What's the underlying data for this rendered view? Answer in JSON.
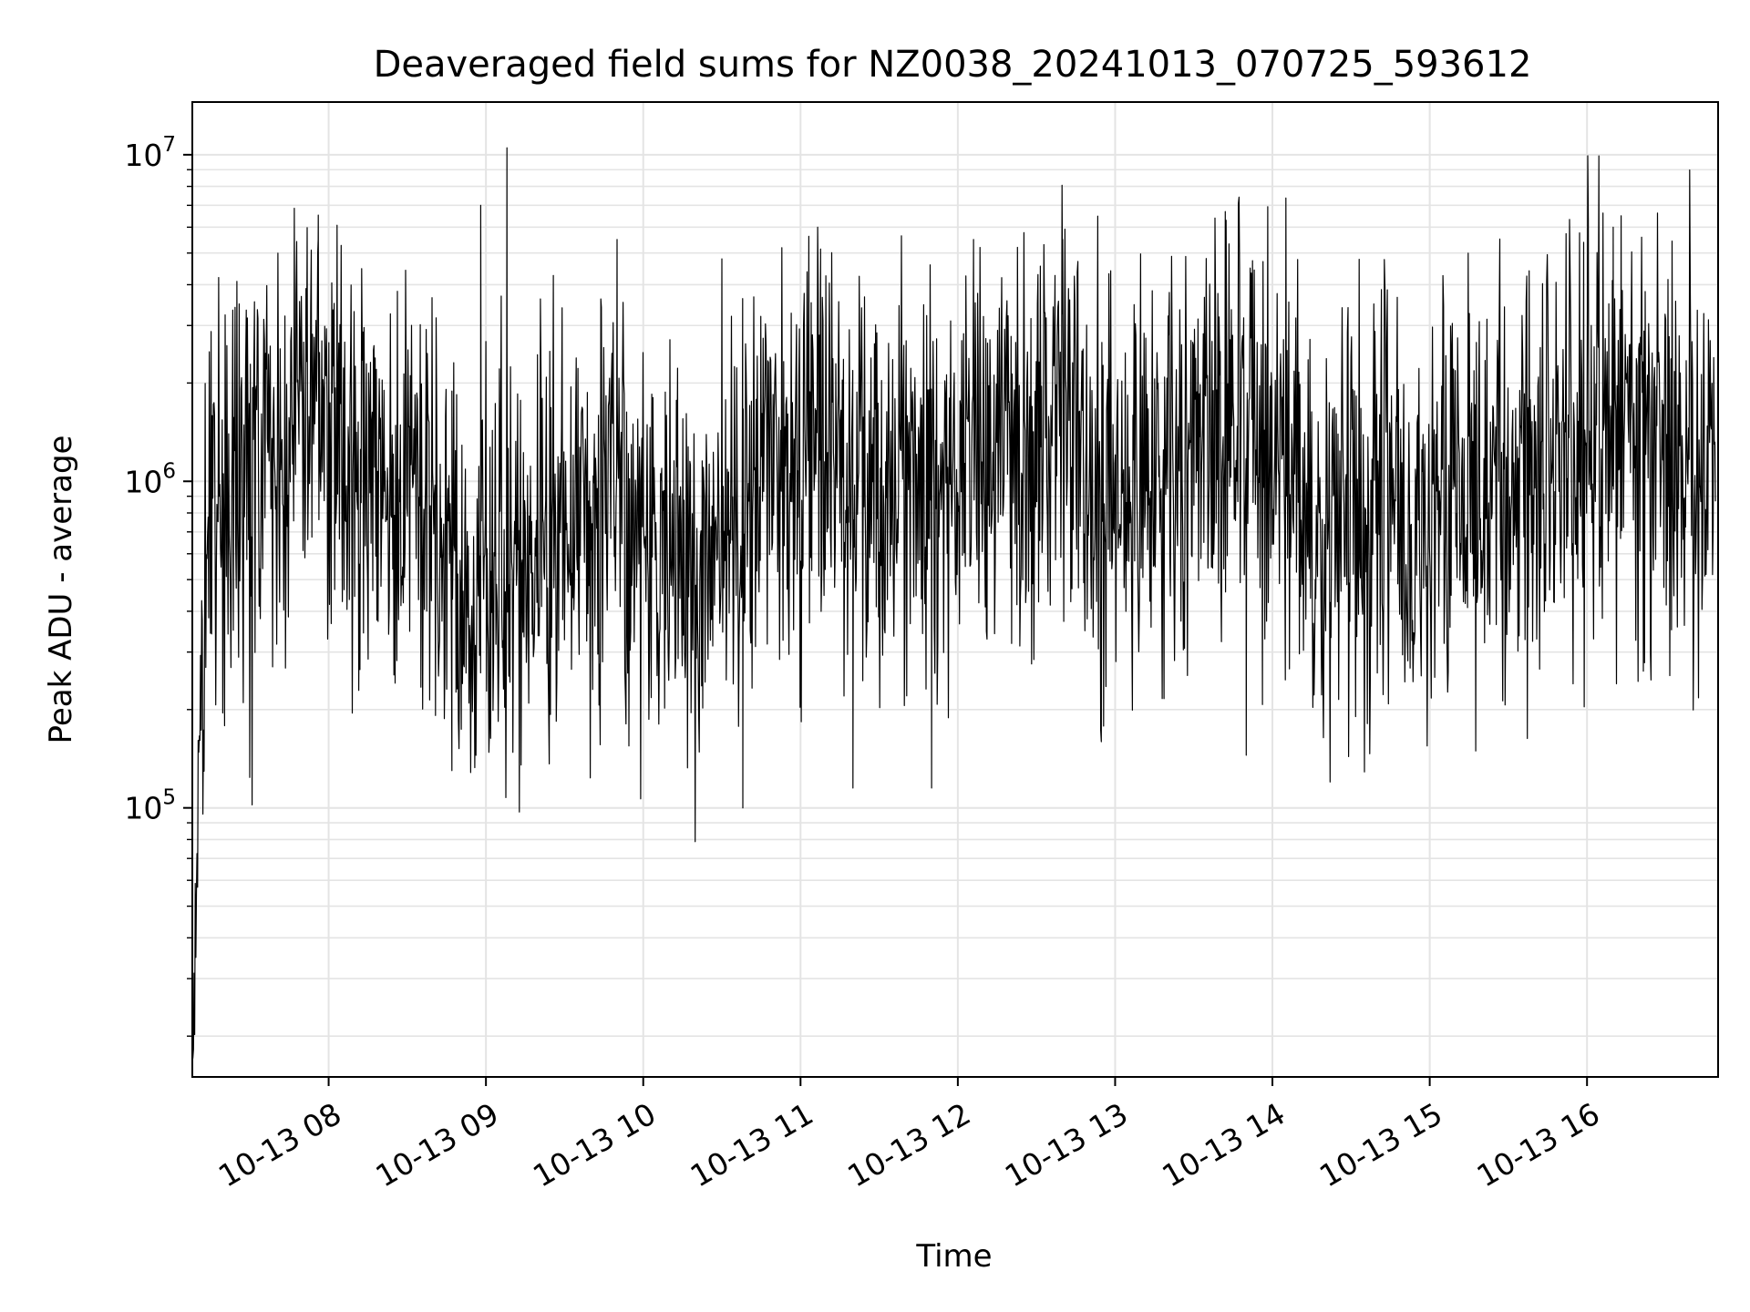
{
  "chart_data": {
    "type": "line",
    "title": "Deaveraged field sums for NZ0038_20241013_070725_593612",
    "xlabel": "Time",
    "ylabel": "Peak ADU - average",
    "yscale": "log",
    "xlim": [
      "2024-10-13 07:08",
      "2024-10-13 16:50"
    ],
    "ylim": [
      15000,
      14500000
    ],
    "grid": true,
    "x_ticks": [
      {
        "label": "10-13 08",
        "value": "2024-10-13 08:00"
      },
      {
        "label": "10-13 09",
        "value": "2024-10-13 09:00"
      },
      {
        "label": "10-13 10",
        "value": "2024-10-13 10:00"
      },
      {
        "label": "10-13 11",
        "value": "2024-10-13 11:00"
      },
      {
        "label": "10-13 12",
        "value": "2024-10-13 12:00"
      },
      {
        "label": "10-13 13",
        "value": "2024-10-13 13:00"
      },
      {
        "label": "10-13 14",
        "value": "2024-10-13 14:00"
      },
      {
        "label": "10-13 15",
        "value": "2024-10-13 15:00"
      },
      {
        "label": "10-13 16",
        "value": "2024-10-13 16:00"
      }
    ],
    "y_ticks": [
      {
        "base": "10",
        "exp": "5",
        "value": 100000
      },
      {
        "base": "10",
        "exp": "6",
        "value": 1000000
      },
      {
        "base": "10",
        "exp": "7",
        "value": 10000000
      }
    ],
    "series_color": "#000000",
    "x": [
      "2024-10-13 07:08",
      "2024-10-13 07:09",
      "2024-10-13 07:10",
      "2024-10-13 07:11",
      "2024-10-13 07:12",
      "2024-10-13 07:15",
      "2024-10-13 07:20",
      "2024-10-13 07:30",
      "2024-10-13 07:40",
      "2024-10-13 07:50",
      "2024-10-13 07:58",
      "2024-10-13 08:10",
      "2024-10-13 08:20",
      "2024-10-13 08:30",
      "2024-10-13 08:40",
      "2024-10-13 08:50",
      "2024-10-13 08:56",
      "2024-10-13 09:04",
      "2024-10-13 09:10",
      "2024-10-13 09:20",
      "2024-10-13 09:30",
      "2024-10-13 09:40",
      "2024-10-13 09:50",
      "2024-10-13 10:00",
      "2024-10-13 10:10",
      "2024-10-13 10:20",
      "2024-10-13 10:30",
      "2024-10-13 10:38",
      "2024-10-13 10:50",
      "2024-10-13 11:00",
      "2024-10-13 11:10",
      "2024-10-13 11:20",
      "2024-10-13 11:30",
      "2024-10-13 11:40",
      "2024-10-13 11:50",
      "2024-10-13 12:00",
      "2024-10-13 12:10",
      "2024-10-13 12:20",
      "2024-10-13 12:30",
      "2024-10-13 12:40",
      "2024-10-13 12:50",
      "2024-10-13 13:00",
      "2024-10-13 13:10",
      "2024-10-13 13:20",
      "2024-10-13 13:30",
      "2024-10-13 13:40",
      "2024-10-13 13:45",
      "2024-10-13 13:50",
      "2024-10-13 14:00",
      "2024-10-13 14:10",
      "2024-10-13 14:20",
      "2024-10-13 14:30",
      "2024-10-13 14:40",
      "2024-10-13 14:50",
      "2024-10-13 15:00",
      "2024-10-13 15:10",
      "2024-10-13 15:20",
      "2024-10-13 15:30",
      "2024-10-13 15:40",
      "2024-10-13 15:50",
      "2024-10-13 16:00",
      "2024-10-13 16:10",
      "2024-10-13 16:20",
      "2024-10-13 16:30",
      "2024-10-13 16:40",
      "2024-10-13 16:49"
    ],
    "y": [
      18000,
      32000,
      90000,
      200000,
      380000,
      700000,
      900000,
      800000,
      1100000,
      1500000,
      1800000,
      1100000,
      900000,
      1000000,
      800000,
      600000,
      350000,
      600000,
      500000,
      700000,
      650000,
      800000,
      700000,
      550000,
      600000,
      500000,
      900000,
      800000,
      1000000,
      1100000,
      1300000,
      1000000,
      900000,
      1100000,
      1000000,
      1200000,
      1300000,
      1000000,
      1100000,
      1400000,
      1200000,
      900000,
      1200000,
      1100000,
      1300000,
      1400000,
      1800000,
      1500000,
      1200000,
      800000,
      900000,
      700000,
      1000000,
      800000,
      700000,
      900000,
      800000,
      1000000,
      1200000,
      1300000,
      1500000,
      1400000,
      1300000,
      1100000,
      1000000,
      800000
    ],
    "peaks": [
      {
        "x": "2024-10-13 07:56",
        "y": 5500000
      },
      {
        "x": "2024-10-13 08:58",
        "y": 7000000
      },
      {
        "x": "2024-10-13 09:08",
        "y": 10500000
      },
      {
        "x": "2024-10-13 09:50",
        "y": 5500000
      },
      {
        "x": "2024-10-13 10:30",
        "y": 4800000
      },
      {
        "x": "2024-10-13 12:06",
        "y": 5500000
      },
      {
        "x": "2024-10-13 12:40",
        "y": 5500000
      },
      {
        "x": "2024-10-13 13:42",
        "y": 6700000
      },
      {
        "x": "2024-10-13 16:10",
        "y": 6000000
      }
    ],
    "troughs": [
      {
        "x": "2024-10-13 08:47",
        "y": 130000
      },
      {
        "x": "2024-10-13 10:38",
        "y": 100000
      },
      {
        "x": "2024-10-13 11:20",
        "y": 115000
      },
      {
        "x": "2024-10-13 11:50",
        "y": 115000
      },
      {
        "x": "2024-10-13 13:50",
        "y": 145000
      },
      {
        "x": "2024-10-13 14:22",
        "y": 120000
      }
    ]
  }
}
